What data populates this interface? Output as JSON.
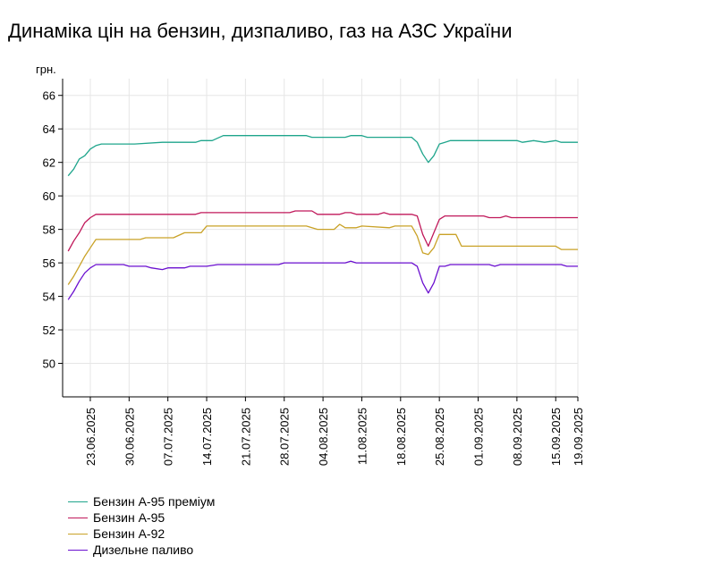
{
  "title": "Динаміка цін на бензин, дизпаливо, газ на АЗС України",
  "chart_data": {
    "type": "line",
    "title": "Динаміка цін на бензин, дизпаливо, газ на АЗС України",
    "ylabel": "грн.",
    "ylim": [
      48,
      67
    ],
    "yticks": [
      50,
      52,
      54,
      56,
      58,
      60,
      62,
      64,
      66
    ],
    "xlim": [
      "2025-06-18",
      "2025-09-19"
    ],
    "xticks": [
      "23.06.2025",
      "30.06.2025",
      "07.07.2025",
      "14.07.2025",
      "21.07.2025",
      "28.07.2025",
      "04.08.2025",
      "11.08.2025",
      "18.08.2025",
      "25.08.2025",
      "01.09.2025",
      "08.09.2025",
      "15.09.2025",
      "19.09.2025"
    ],
    "grid": true,
    "legend_position": "bottom-left",
    "series": [
      {
        "name": "Бензин А-95 преміум",
        "color": "#1fa58c",
        "points": [
          [
            "2025-06-19",
            61.2
          ],
          [
            "2025-06-20",
            61.6
          ],
          [
            "2025-06-21",
            62.2
          ],
          [
            "2025-06-22",
            62.4
          ],
          [
            "2025-06-23",
            62.8
          ],
          [
            "2025-06-24",
            63.0
          ],
          [
            "2025-06-25",
            63.1
          ],
          [
            "2025-07-01",
            63.1
          ],
          [
            "2025-07-06",
            63.2
          ],
          [
            "2025-07-12",
            63.2
          ],
          [
            "2025-07-13",
            63.3
          ],
          [
            "2025-07-15",
            63.3
          ],
          [
            "2025-07-17",
            63.6
          ],
          [
            "2025-08-01",
            63.6
          ],
          [
            "2025-08-02",
            63.5
          ],
          [
            "2025-08-08",
            63.5
          ],
          [
            "2025-08-09",
            63.6
          ],
          [
            "2025-08-11",
            63.6
          ],
          [
            "2025-08-12",
            63.5
          ],
          [
            "2025-08-20",
            63.5
          ],
          [
            "2025-08-21",
            63.2
          ],
          [
            "2025-08-22",
            62.5
          ],
          [
            "2025-08-23",
            62.0
          ],
          [
            "2025-08-24",
            62.4
          ],
          [
            "2025-08-25",
            63.1
          ],
          [
            "2025-08-26",
            63.2
          ],
          [
            "2025-08-27",
            63.3
          ],
          [
            "2025-09-07",
            63.3
          ],
          [
            "2025-09-08",
            63.3
          ],
          [
            "2025-09-09",
            63.2
          ],
          [
            "2025-09-11",
            63.3
          ],
          [
            "2025-09-13",
            63.2
          ],
          [
            "2025-09-15",
            63.3
          ],
          [
            "2025-09-16",
            63.2
          ],
          [
            "2025-09-19",
            63.2
          ]
        ]
      },
      {
        "name": "Бензин А-95",
        "color": "#c0185a",
        "points": [
          [
            "2025-06-19",
            56.7
          ],
          [
            "2025-06-20",
            57.3
          ],
          [
            "2025-06-21",
            57.8
          ],
          [
            "2025-06-22",
            58.4
          ],
          [
            "2025-06-23",
            58.7
          ],
          [
            "2025-06-24",
            58.9
          ],
          [
            "2025-07-12",
            58.9
          ],
          [
            "2025-07-13",
            59.0
          ],
          [
            "2025-07-29",
            59.0
          ],
          [
            "2025-07-30",
            59.1
          ],
          [
            "2025-08-02",
            59.1
          ],
          [
            "2025-08-03",
            58.9
          ],
          [
            "2025-08-07",
            58.9
          ],
          [
            "2025-08-08",
            59.0
          ],
          [
            "2025-08-09",
            59.0
          ],
          [
            "2025-08-10",
            58.9
          ],
          [
            "2025-08-14",
            58.9
          ],
          [
            "2025-08-15",
            59.0
          ],
          [
            "2025-08-16",
            58.9
          ],
          [
            "2025-08-20",
            58.9
          ],
          [
            "2025-08-21",
            58.8
          ],
          [
            "2025-08-22",
            57.7
          ],
          [
            "2025-08-23",
            57.0
          ],
          [
            "2025-08-24",
            57.8
          ],
          [
            "2025-08-25",
            58.6
          ],
          [
            "2025-08-26",
            58.8
          ],
          [
            "2025-08-27",
            58.8
          ],
          [
            "2025-09-02",
            58.8
          ],
          [
            "2025-09-03",
            58.7
          ],
          [
            "2025-09-05",
            58.7
          ],
          [
            "2025-09-06",
            58.8
          ],
          [
            "2025-09-07",
            58.7
          ],
          [
            "2025-09-19",
            58.7
          ]
        ]
      },
      {
        "name": "Бензин А-92",
        "color": "#c9a227",
        "points": [
          [
            "2025-06-19",
            54.7
          ],
          [
            "2025-06-20",
            55.2
          ],
          [
            "2025-06-21",
            55.8
          ],
          [
            "2025-06-22",
            56.4
          ],
          [
            "2025-06-23",
            56.9
          ],
          [
            "2025-06-24",
            57.4
          ],
          [
            "2025-07-02",
            57.4
          ],
          [
            "2025-07-03",
            57.5
          ],
          [
            "2025-07-08",
            57.5
          ],
          [
            "2025-07-10",
            57.8
          ],
          [
            "2025-07-13",
            57.8
          ],
          [
            "2025-07-14",
            58.2
          ],
          [
            "2025-08-01",
            58.2
          ],
          [
            "2025-08-03",
            58.0
          ],
          [
            "2025-08-06",
            58.0
          ],
          [
            "2025-08-07",
            58.3
          ],
          [
            "2025-08-08",
            58.1
          ],
          [
            "2025-08-10",
            58.1
          ],
          [
            "2025-08-11",
            58.2
          ],
          [
            "2025-08-16",
            58.1
          ],
          [
            "2025-08-17",
            58.2
          ],
          [
            "2025-08-20",
            58.2
          ],
          [
            "2025-08-21",
            57.6
          ],
          [
            "2025-08-22",
            56.6
          ],
          [
            "2025-08-23",
            56.5
          ],
          [
            "2025-08-24",
            56.9
          ],
          [
            "2025-08-25",
            57.7
          ],
          [
            "2025-08-26",
            57.7
          ],
          [
            "2025-08-28",
            57.7
          ],
          [
            "2025-08-29",
            57.0
          ],
          [
            "2025-09-15",
            57.0
          ],
          [
            "2025-09-16",
            56.8
          ],
          [
            "2025-09-19",
            56.8
          ]
        ]
      },
      {
        "name": "Дизельне паливо",
        "color": "#6a0fcf",
        "points": [
          [
            "2025-06-19",
            53.8
          ],
          [
            "2025-06-20",
            54.3
          ],
          [
            "2025-06-21",
            54.9
          ],
          [
            "2025-06-22",
            55.4
          ],
          [
            "2025-06-23",
            55.7
          ],
          [
            "2025-06-24",
            55.9
          ],
          [
            "2025-06-29",
            55.9
          ],
          [
            "2025-06-30",
            55.8
          ],
          [
            "2025-07-03",
            55.8
          ],
          [
            "2025-07-04",
            55.7
          ],
          [
            "2025-07-06",
            55.6
          ],
          [
            "2025-07-07",
            55.7
          ],
          [
            "2025-07-10",
            55.7
          ],
          [
            "2025-07-11",
            55.8
          ],
          [
            "2025-07-14",
            55.8
          ],
          [
            "2025-07-16",
            55.9
          ],
          [
            "2025-07-27",
            55.9
          ],
          [
            "2025-07-28",
            56.0
          ],
          [
            "2025-08-08",
            56.0
          ],
          [
            "2025-08-09",
            56.1
          ],
          [
            "2025-08-10",
            56.0
          ],
          [
            "2025-08-20",
            56.0
          ],
          [
            "2025-08-21",
            55.8
          ],
          [
            "2025-08-22",
            54.8
          ],
          [
            "2025-08-23",
            54.2
          ],
          [
            "2025-08-24",
            54.8
          ],
          [
            "2025-08-25",
            55.8
          ],
          [
            "2025-08-26",
            55.8
          ],
          [
            "2025-08-27",
            55.9
          ],
          [
            "2025-09-03",
            55.9
          ],
          [
            "2025-09-04",
            55.8
          ],
          [
            "2025-09-05",
            55.9
          ],
          [
            "2025-09-06",
            55.9
          ],
          [
            "2025-09-16",
            55.9
          ],
          [
            "2025-09-17",
            55.8
          ],
          [
            "2025-09-19",
            55.8
          ]
        ]
      }
    ]
  }
}
